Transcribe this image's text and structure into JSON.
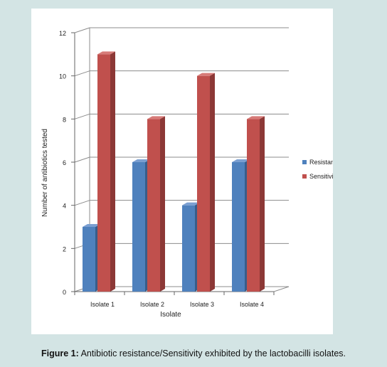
{
  "caption": {
    "label": "Figure 1:",
    "text": "Antibiotic resistance/Sensitivity exhibited by the lactobacilli isolates."
  },
  "chart_data": {
    "type": "bar",
    "style": "3d-clustered",
    "title": "",
    "xlabel": "Isolate",
    "ylabel": "Number of antibiotics tested",
    "categories": [
      "Isolate 1",
      "Isolate 2",
      "Isolate 3",
      "Isolate 4"
    ],
    "series": [
      {
        "name": "Resistance",
        "values": [
          3,
          6,
          4,
          6
        ],
        "color": "#4f81bd",
        "side_color": "#385d8a",
        "top_color": "#7b9fd1"
      },
      {
        "name": "Sensitivity",
        "values": [
          11,
          8,
          10,
          8
        ],
        "color": "#c0504d",
        "side_color": "#8c3836",
        "top_color": "#d77b78"
      }
    ],
    "ylim": [
      0,
      12
    ],
    "yticks": [
      0,
      2,
      4,
      6,
      8,
      10,
      12
    ],
    "grid": true,
    "legend": "right"
  }
}
